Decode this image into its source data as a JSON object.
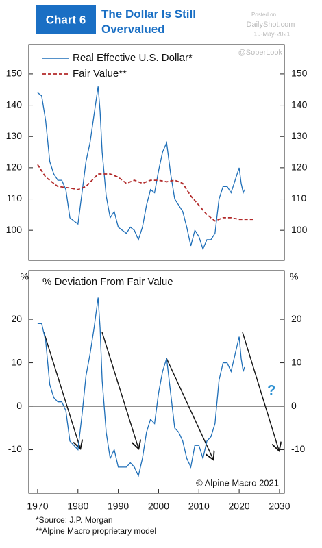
{
  "header": {
    "badge": "Chart 6",
    "title": "The Dollar Is Still Overvalued"
  },
  "watermark": {
    "posted": "Posted on",
    "site": "DailyShot.com",
    "date": "19-May-2021",
    "handle": "@SoberLook"
  },
  "footnotes": [
    "*Source: J.P. Morgan",
    "**Alpine Macro proprietary model"
  ],
  "chart_data": [
    {
      "type": "line",
      "legend": "upper left",
      "mirror_y_ticks": true,
      "xlim": [
        1967.8,
        2031.2
      ],
      "ylim": [
        90.4,
        159.4
      ],
      "yticks": [
        100,
        110,
        120,
        130,
        140,
        150
      ],
      "series": [
        {
          "name": "Real Effective U.S. Dollar*",
          "color": "#1f6fb8",
          "dash": false,
          "x": [
            1970,
            1971,
            1972,
            1973,
            1974,
            1975,
            1976,
            1977,
            1978,
            1979,
            1980,
            1981,
            1982,
            1983,
            1984,
            1985,
            1985.5,
            1986,
            1987,
            1988,
            1989,
            1990,
            1991,
            1992,
            1993,
            1994,
            1995,
            1996,
            1997,
            1998,
            1999,
            2000,
            2001,
            2002,
            2003,
            2004,
            2005,
            2006,
            2007,
            2008,
            2009,
            2010,
            2011,
            2012,
            2013,
            2014,
            2015,
            2016,
            2017,
            2018,
            2019,
            2020,
            2020.5,
            2021,
            2021.3
          ],
          "values": [
            144,
            143,
            135,
            122,
            118,
            116,
            116,
            113,
            104,
            103,
            102,
            112,
            122,
            128,
            137,
            146,
            138,
            125,
            111,
            104,
            106,
            101,
            100,
            99,
            101,
            100,
            97,
            101,
            108,
            113,
            112,
            119,
            125,
            128,
            118,
            110,
            108,
            106,
            101,
            95,
            100,
            98,
            94,
            97,
            97,
            99,
            110,
            114,
            114,
            112,
            116,
            120,
            115,
            112,
            113
          ]
        },
        {
          "name": "Fair Value**",
          "color": "#b22a2a",
          "dash": true,
          "x": [
            1970,
            1972,
            1975,
            1978,
            1980,
            1982,
            1985,
            1988,
            1990,
            1992,
            1994,
            1996,
            1998,
            2000,
            2002,
            2004,
            2006,
            2008,
            2010,
            2012,
            2014,
            2016,
            2018,
            2020,
            2022,
            2024
          ],
          "values": [
            121,
            117,
            114,
            113.5,
            113,
            114,
            118,
            118,
            117,
            115,
            116,
            115,
            116,
            116,
            115.5,
            116,
            115,
            111,
            108,
            105,
            103,
            104,
            104,
            103.5,
            103.5,
            103.5
          ]
        }
      ]
    },
    {
      "type": "line",
      "title": "% Deviation From Fair Value",
      "ylabel": "%",
      "mirror_y_ticks": true,
      "zero_line": true,
      "xlim": [
        1967.8,
        2031.2
      ],
      "xticks": [
        1970,
        1980,
        1990,
        2000,
        2010,
        2020,
        2030
      ],
      "ylim": [
        -20,
        31.2
      ],
      "yticks": [
        -10,
        0,
        10,
        20
      ],
      "annotations": [
        "?",
        "© Alpine Macro 2021"
      ],
      "series": [
        {
          "color": "#1f6fb8",
          "x": [
            1970,
            1971,
            1972,
            1973,
            1974,
            1975,
            1976,
            1977,
            1978,
            1979,
            1980,
            1981,
            1982,
            1983,
            1984,
            1985,
            1985.5,
            1986,
            1987,
            1988,
            1989,
            1990,
            1991,
            1992,
            1993,
            1994,
            1995,
            1996,
            1997,
            1998,
            1999,
            2000,
            2001,
            2002,
            2003,
            2004,
            2005,
            2006,
            2007,
            2008,
            2009,
            2010,
            2011,
            2012,
            2013,
            2014,
            2015,
            2016,
            2017,
            2018,
            2019,
            2020,
            2020.5,
            2021,
            2021.3
          ],
          "values": [
            19,
            19,
            15,
            5,
            2,
            1,
            1,
            -1,
            -8,
            -9,
            -10,
            -2,
            7,
            12,
            18,
            25,
            18,
            6,
            -6,
            -12,
            -10,
            -14,
            -14,
            -14,
            -13,
            -14,
            -16,
            -12,
            -6,
            -3,
            -4,
            3,
            8,
            11,
            3,
            -5,
            -6,
            -8,
            -12,
            -14,
            -9,
            -9,
            -12,
            -8,
            -7,
            -4,
            6,
            10,
            10,
            8,
            12,
            16,
            11,
            8,
            9
          ]
        }
      ]
    }
  ]
}
